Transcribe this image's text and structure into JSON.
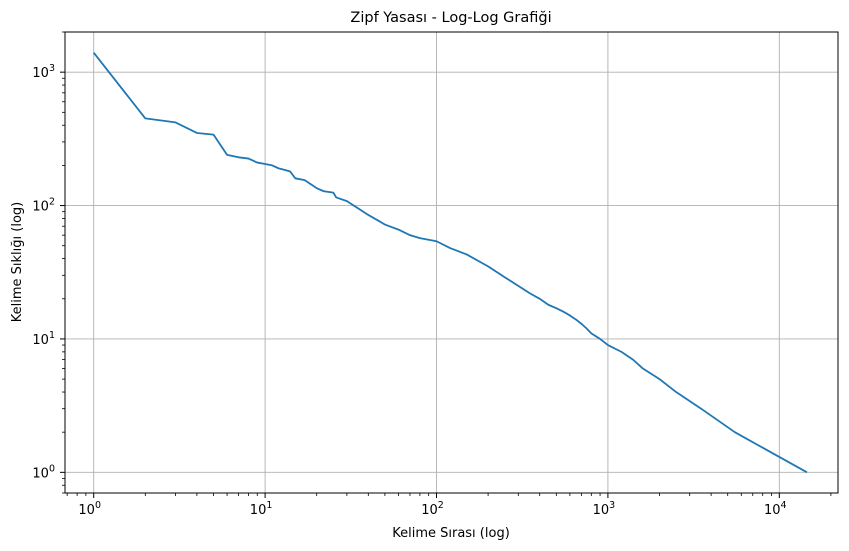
{
  "chart_data": {
    "type": "line",
    "title": "Zipf Yasası - Log-Log Grafiği",
    "xlabel": "Kelime Sırası (log)",
    "ylabel": "Kelime Sıklığı (log)",
    "xscale": "log",
    "yscale": "log",
    "xlim": [
      0.68,
      22000
    ],
    "ylim": [
      0.7,
      2000
    ],
    "grid": true,
    "line_color": "#1f77b4",
    "x_ticks": [
      {
        "value": 1,
        "base": "10",
        "exp": "0"
      },
      {
        "value": 10,
        "base": "10",
        "exp": "1"
      },
      {
        "value": 100,
        "base": "10",
        "exp": "2"
      },
      {
        "value": 1000,
        "base": "10",
        "exp": "3"
      },
      {
        "value": 10000,
        "base": "10",
        "exp": "4"
      }
    ],
    "y_ticks": [
      {
        "value": 1,
        "base": "10",
        "exp": "0"
      },
      {
        "value": 10,
        "base": "10",
        "exp": "1"
      },
      {
        "value": 100,
        "base": "10",
        "exp": "2"
      },
      {
        "value": 1000,
        "base": "10",
        "exp": "3"
      }
    ],
    "series": [
      {
        "x": [
          1,
          2,
          3,
          4,
          5,
          6,
          7,
          8,
          9,
          10,
          11,
          12,
          13,
          14,
          15,
          17,
          20,
          22,
          25,
          26,
          30,
          35,
          40,
          45,
          50,
          60,
          70,
          80,
          100,
          120,
          150,
          200,
          250,
          300,
          350,
          400,
          450,
          500,
          550,
          600,
          650,
          700,
          750,
          800,
          900,
          1000,
          1200,
          1400,
          1600,
          2000,
          2500,
          3500,
          5500,
          14500
        ],
        "y": [
          1400,
          450,
          420,
          350,
          340,
          240,
          230,
          225,
          210,
          205,
          200,
          190,
          185,
          180,
          160,
          155,
          135,
          128,
          125,
          115,
          108,
          95,
          85,
          78,
          72,
          66,
          60,
          57,
          54,
          48,
          43,
          35,
          29,
          25,
          22,
          20,
          18,
          17,
          16,
          15,
          14,
          13,
          12,
          11,
          10,
          9,
          8,
          7,
          6,
          5,
          4,
          3,
          2,
          1
        ]
      }
    ]
  }
}
